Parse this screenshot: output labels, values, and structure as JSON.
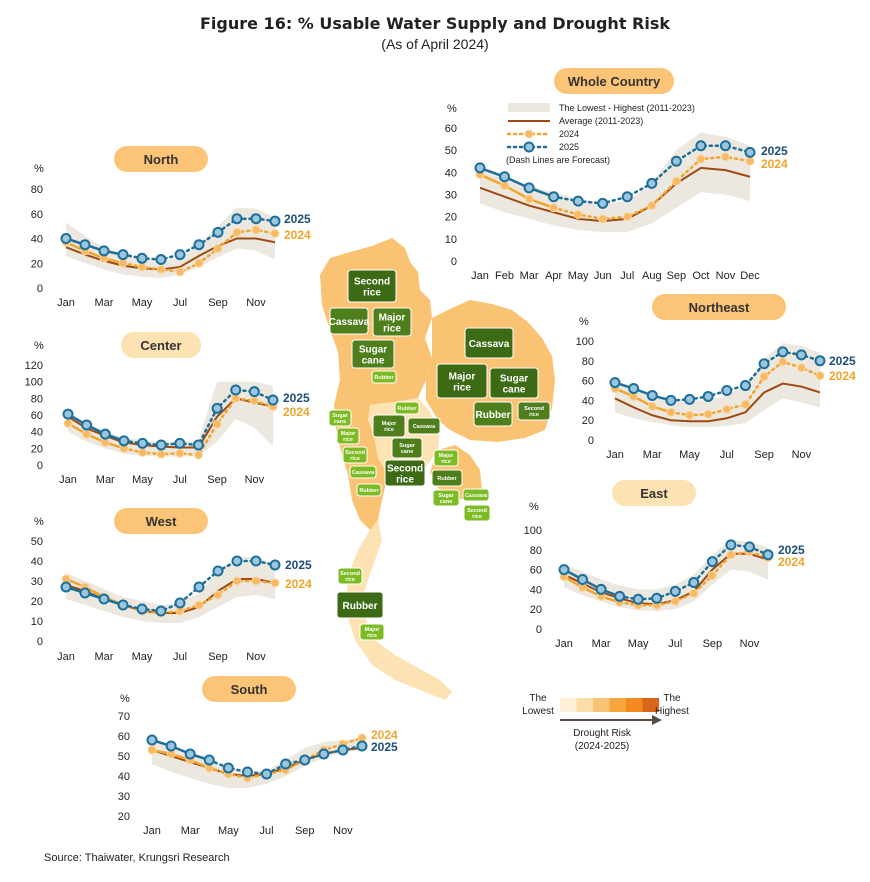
{
  "title": "Figure 16: % Usable Water Supply and Drought Risk",
  "subtitle": "(As of April 2024)",
  "source": "Source: Thaiwater, Krungsri Research",
  "colors": {
    "band": "#ece8e0",
    "average": "#9e4a12",
    "y2024": "#f2a42b",
    "y2025": "#1d6f9a",
    "pill": "#fbc477",
    "pill_light": "#fde2b3"
  },
  "legend": {
    "band": "The Lowest - Highest (2011-2023)",
    "average": "Average (2011-2023)",
    "y2024": "2024",
    "y2025": "2025",
    "note": "(Dash Lines are Forecast)"
  },
  "series_labels": {
    "y2025": "2025",
    "y2024": "2024"
  },
  "drought_scale": {
    "low": [
      "The",
      "Lowest"
    ],
    "high": [
      "The",
      "Highest"
    ],
    "title": "Drought Risk",
    "period": "(2024-2025)",
    "colors": [
      "#fef0d6",
      "#fcdca7",
      "#f9c373",
      "#f6a63f",
      "#f28a1f",
      "#d9661a"
    ]
  },
  "map_labels": {
    "north": [
      "Second rice",
      "Cassava",
      "Major rice",
      "Sugar cane",
      "Rubber"
    ],
    "northeast": [
      "Cassava",
      "Major rice",
      "Sugar cane",
      "Rubber",
      "Second rice"
    ],
    "central": [
      "Rubber",
      "Major rice",
      "Cassava",
      "Sugar cane",
      "Second rice"
    ],
    "small_left": [
      "Sugar cane",
      "Major rice",
      "Second rice",
      "Cassava",
      "Rubber"
    ],
    "small_east": [
      "Major rice",
      "Rubber",
      "Sugar cane",
      "Cassava",
      "Second rice"
    ],
    "south": [
      "Second rice",
      "Rubber",
      "Major rice"
    ]
  },
  "chart_data": [
    {
      "id": "north",
      "title": "North",
      "type": "line",
      "unit": "%",
      "ylim": [
        0,
        80
      ],
      "yticks": [
        0,
        20,
        40,
        60,
        80
      ],
      "x": [
        1,
        2,
        3,
        4,
        5,
        6,
        7,
        8,
        9,
        10,
        11,
        12
      ],
      "xticklabels": {
        "1": "Jan",
        "3": "Mar",
        "5": "May",
        "7": "Jul",
        "9": "Sep",
        "11": "Nov"
      },
      "band_low": [
        26,
        20,
        15,
        11,
        9,
        8,
        11,
        17,
        25,
        32,
        30,
        23
      ],
      "band_high": [
        53,
        42,
        33,
        27,
        23,
        22,
        24,
        35,
        50,
        65,
        64,
        57
      ],
      "average": [
        33,
        27,
        22,
        18,
        16,
        15,
        17,
        26,
        34,
        40,
        40,
        37
      ],
      "y2024": [
        37,
        30,
        24,
        20,
        17,
        15,
        13,
        20,
        32,
        45,
        47,
        44
      ],
      "y2024_actual": 4,
      "y2025": [
        40,
        35,
        30,
        27,
        24,
        23,
        27,
        35,
        45,
        56,
        56,
        54
      ],
      "y2025_actual": 4
    },
    {
      "id": "center",
      "title": "Center",
      "type": "line",
      "unit": "%",
      "ylim": [
        0,
        120
      ],
      "yticks": [
        0,
        20,
        40,
        60,
        80,
        100,
        120
      ],
      "x": [
        1,
        2,
        3,
        4,
        5,
        6,
        7,
        8,
        9,
        10,
        11,
        12
      ],
      "xticklabels": {
        "1": "Jan",
        "3": "Mar",
        "5": "May",
        "7": "Jul",
        "9": "Sep",
        "11": "Nov"
      },
      "band_low": [
        40,
        28,
        20,
        14,
        11,
        10,
        10,
        11,
        28,
        55,
        45,
        22
      ],
      "band_high": [
        60,
        50,
        40,
        33,
        30,
        28,
        27,
        30,
        100,
        100,
        100,
        95
      ],
      "average": [
        58,
        44,
        35,
        27,
        24,
        22,
        21,
        21,
        58,
        80,
        75,
        70
      ],
      "y2024": [
        50,
        37,
        27,
        20,
        15,
        13,
        14,
        12,
        49,
        80,
        77,
        70
      ],
      "y2024_actual": 4,
      "y2025": [
        61,
        48,
        37,
        29,
        26,
        24,
        26,
        24,
        68,
        90,
        88,
        78
      ],
      "y2025_actual": 4
    },
    {
      "id": "west",
      "title": "West",
      "type": "line",
      "unit": "%",
      "ylim": [
        0,
        50
      ],
      "yticks": [
        0,
        10,
        20,
        30,
        40,
        50
      ],
      "x": [
        1,
        2,
        3,
        4,
        5,
        6,
        7,
        8,
        9,
        10,
        11,
        12
      ],
      "xticklabels": {
        "1": "Jan",
        "3": "Mar",
        "5": "May",
        "7": "Jul",
        "9": "Sep",
        "11": "Nov"
      },
      "band_low": [
        21,
        18,
        15,
        12,
        10,
        9,
        9,
        12,
        17,
        22,
        23,
        21
      ],
      "band_high": [
        34,
        30,
        26,
        22,
        20,
        18,
        19,
        24,
        35,
        42,
        42,
        38
      ],
      "average": [
        28,
        25,
        21,
        18,
        15,
        14,
        14,
        17,
        25,
        31,
        31,
        29
      ],
      "y2024": [
        31,
        27,
        22,
        18,
        15,
        14,
        15,
        18,
        23,
        30,
        30,
        29
      ],
      "y2024_actual": 4,
      "y2025": [
        27,
        24,
        21,
        18,
        16,
        15,
        19,
        27,
        35,
        40,
        40,
        38
      ],
      "y2025_actual": 4
    },
    {
      "id": "south",
      "title": "South",
      "type": "line",
      "unit": "%",
      "ylim": [
        20,
        70
      ],
      "yticks": [
        20,
        30,
        40,
        50,
        60,
        70
      ],
      "x": [
        1,
        2,
        3,
        4,
        5,
        6,
        7,
        8,
        9,
        10,
        11,
        12
      ],
      "xticklabels": {
        "1": "Jan",
        "3": "Mar",
        "5": "May",
        "7": "Jul",
        "9": "Sep",
        "11": "Nov"
      },
      "band_low": [
        46,
        42,
        39,
        36,
        34,
        34,
        36,
        40,
        45,
        49,
        52,
        53
      ],
      "band_high": [
        58,
        55,
        51,
        47,
        44,
        42,
        43,
        48,
        54,
        57,
        58,
        59
      ],
      "average": [
        53,
        50,
        47,
        44,
        41,
        40,
        41,
        44,
        48,
        51,
        53,
        54
      ],
      "y2024": [
        53,
        51,
        48,
        44,
        41,
        39,
        41,
        43,
        48,
        53,
        56,
        59
      ],
      "y2024_actual": 4,
      "y2025": [
        58,
        55,
        51,
        48,
        44,
        42,
        41,
        46,
        48,
        51,
        53,
        55
      ],
      "y2025_actual": 4
    },
    {
      "id": "whole",
      "title": "Whole Country",
      "type": "line",
      "unit": "%",
      "ylim": [
        0,
        60
      ],
      "yticks": [
        0,
        10,
        20,
        30,
        40,
        50,
        60
      ],
      "x": [
        1,
        2,
        3,
        4,
        5,
        6,
        7,
        8,
        9,
        10,
        11,
        12
      ],
      "xticklabels": {
        "1": "Jan",
        "2": "Feb",
        "3": "Mar",
        "4": "Apr",
        "5": "May",
        "6": "Jun",
        "7": "Jul",
        "8": "Aug",
        "9": "Sep",
        "10": "Oct",
        "11": "Nov",
        "12": "Dec"
      },
      "band_low": [
        26,
        22,
        19,
        16,
        14,
        13,
        13,
        17,
        24,
        31,
        30,
        27
      ],
      "band_high": [
        42,
        38,
        34,
        31,
        28,
        26,
        27,
        35,
        50,
        58,
        56,
        52
      ],
      "average": [
        33,
        29,
        25,
        22,
        19,
        18,
        19,
        25,
        35,
        42,
        41,
        38
      ],
      "y2024": [
        39,
        34,
        28,
        24,
        21,
        19,
        20,
        25,
        36,
        46,
        47,
        45
      ],
      "y2024_actual": 4,
      "y2025": [
        42,
        38,
        33,
        29,
        27,
        26,
        29,
        35,
        45,
        52,
        52,
        49
      ],
      "y2025_actual": 4
    },
    {
      "id": "northeast",
      "title": "Northeast",
      "type": "line",
      "unit": "%",
      "ylim": [
        0,
        100
      ],
      "yticks": [
        0,
        20,
        40,
        60,
        80,
        100
      ],
      "x": [
        1,
        2,
        3,
        4,
        5,
        6,
        7,
        8,
        9,
        10,
        11,
        12
      ],
      "xticklabels": {
        "1": "Jan",
        "3": "Mar",
        "5": "May",
        "7": "Jul",
        "9": "Sep",
        "11": "Nov"
      },
      "band_low": [
        28,
        22,
        18,
        15,
        13,
        13,
        14,
        17,
        30,
        42,
        38,
        33
      ],
      "band_high": [
        60,
        52,
        45,
        42,
        40,
        40,
        45,
        55,
        82,
        98,
        95,
        88
      ],
      "average": [
        42,
        33,
        25,
        20,
        19,
        19,
        22,
        28,
        48,
        57,
        54,
        48
      ],
      "y2024": [
        52,
        44,
        34,
        28,
        25,
        26,
        31,
        36,
        64,
        79,
        73,
        65
      ],
      "y2024_actual": 4,
      "y2025": [
        58,
        52,
        45,
        40,
        41,
        44,
        50,
        55,
        77,
        89,
        86,
        80
      ],
      "y2025_actual": 4
    },
    {
      "id": "east",
      "title": "East",
      "type": "line",
      "unit": "%",
      "ylim": [
        0,
        100
      ],
      "yticks": [
        0,
        20,
        40,
        60,
        80,
        100
      ],
      "x": [
        1,
        2,
        3,
        4,
        5,
        6,
        7,
        8,
        9,
        10,
        11,
        12
      ],
      "xticklabels": {
        "1": "Jan",
        "3": "Mar",
        "5": "May",
        "7": "Jul",
        "9": "Sep",
        "11": "Nov"
      },
      "band_low": [
        42,
        34,
        28,
        22,
        19,
        18,
        20,
        28,
        45,
        60,
        58,
        50
      ],
      "band_high": [
        65,
        58,
        50,
        44,
        40,
        40,
        45,
        55,
        75,
        90,
        88,
        82
      ],
      "average": [
        55,
        46,
        37,
        31,
        26,
        25,
        29,
        38,
        60,
        76,
        76,
        70
      ],
      "y2024": [
        53,
        42,
        33,
        27,
        24,
        24,
        28,
        36,
        54,
        75,
        78,
        72
      ],
      "y2024_actual": 4,
      "y2025": [
        60,
        50,
        40,
        33,
        30,
        31,
        38,
        47,
        68,
        85,
        83,
        75
      ],
      "y2025_actual": 4
    }
  ]
}
